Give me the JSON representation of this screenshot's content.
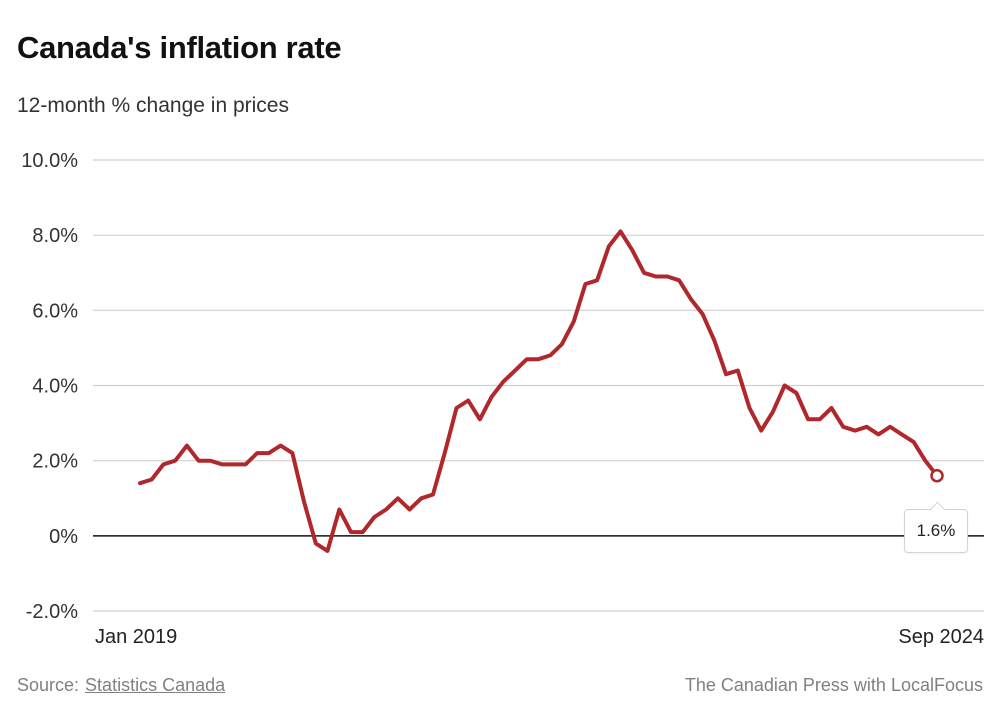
{
  "chart_data": {
    "type": "line",
    "title": "Canada's inflation rate",
    "subtitle": "12-month % change in prices",
    "xlabel": "",
    "ylabel": "",
    "x_start": "Jan 2019",
    "x_end": "Sep 2024",
    "x_tick_labels": [
      "Jan 2019",
      "Sep 2024"
    ],
    "ylim": [
      -2,
      10
    ],
    "y_ticks": [
      10,
      8,
      6,
      4,
      2,
      0,
      -2
    ],
    "y_tick_labels": [
      "10.0%",
      "8.0%",
      "6.0%",
      "4.0%",
      "2.0%",
      "0%",
      "-2.0%"
    ],
    "grid": true,
    "series": [
      {
        "name": "Inflation rate",
        "color": "#b0282c",
        "x": [
          "Jan 2019",
          "Feb 2019",
          "Mar 2019",
          "Apr 2019",
          "May 2019",
          "Jun 2019",
          "Jul 2019",
          "Aug 2019",
          "Sep 2019",
          "Oct 2019",
          "Nov 2019",
          "Dec 2019",
          "Jan 2020",
          "Feb 2020",
          "Mar 2020",
          "Apr 2020",
          "May 2020",
          "Jun 2020",
          "Jul 2020",
          "Aug 2020",
          "Sep 2020",
          "Oct 2020",
          "Nov 2020",
          "Dec 2020",
          "Jan 2021",
          "Feb 2021",
          "Mar 2021",
          "Apr 2021",
          "May 2021",
          "Jun 2021",
          "Jul 2021",
          "Aug 2021",
          "Sep 2021",
          "Oct 2021",
          "Nov 2021",
          "Dec 2021",
          "Jan 2022",
          "Feb 2022",
          "Mar 2022",
          "Apr 2022",
          "May 2022",
          "Jun 2022",
          "Jul 2022",
          "Aug 2022",
          "Sep 2022",
          "Oct 2022",
          "Nov 2022",
          "Dec 2022",
          "Jan 2023",
          "Feb 2023",
          "Mar 2023",
          "Apr 2023",
          "May 2023",
          "Jun 2023",
          "Jul 2023",
          "Aug 2023",
          "Sep 2023",
          "Oct 2023",
          "Nov 2023",
          "Dec 2023",
          "Jan 2024",
          "Feb 2024",
          "Mar 2024",
          "Apr 2024",
          "May 2024",
          "Jun 2024",
          "Jul 2024",
          "Aug 2024",
          "Sep 2024"
        ],
        "values": [
          1.4,
          1.5,
          1.9,
          2.0,
          2.4,
          2.0,
          2.0,
          1.9,
          1.9,
          1.9,
          2.2,
          2.2,
          2.4,
          2.2,
          0.9,
          -0.2,
          -0.4,
          0.7,
          0.1,
          0.1,
          0.5,
          0.7,
          1.0,
          0.7,
          1.0,
          1.1,
          2.2,
          3.4,
          3.6,
          3.1,
          3.7,
          4.1,
          4.4,
          4.7,
          4.7,
          4.8,
          5.1,
          5.7,
          6.7,
          6.8,
          7.7,
          8.1,
          7.6,
          7.0,
          6.9,
          6.9,
          6.8,
          6.3,
          5.9,
          5.2,
          4.3,
          4.4,
          3.4,
          2.8,
          3.3,
          4.0,
          3.8,
          3.1,
          3.1,
          3.4,
          2.9,
          2.8,
          2.9,
          2.7,
          2.9,
          2.7,
          2.5,
          2.0,
          1.6
        ]
      }
    ],
    "annotations": [
      {
        "x": "Sep 2024",
        "value": 1.6,
        "label": "1.6%"
      }
    ]
  },
  "footer": {
    "source_prefix": "Source:",
    "source_link": "Statistics Canada",
    "credit": "The Canadian Press with LocalFocus"
  },
  "colors": {
    "line": "#b0282c",
    "grid": "#d0d0d0",
    "zero_line": "#111111"
  }
}
